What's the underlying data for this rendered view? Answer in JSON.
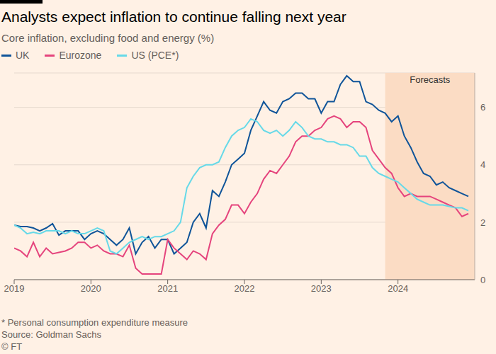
{
  "chart_data": {
    "type": "line",
    "title": "Analysts expect inflation to continue falling next year",
    "subtitle": "Core inflation, excluding food and energy (%)",
    "footnote": "* Personal consumption expenditure measure",
    "source": "Source: Goldman Sachs",
    "credit": "© FT",
    "x": [
      2019,
      2019.083,
      2019.167,
      2019.25,
      2019.333,
      2019.417,
      2019.5,
      2019.583,
      2019.667,
      2019.75,
      2019.833,
      2019.917,
      2020,
      2020.083,
      2020.167,
      2020.25,
      2020.333,
      2020.417,
      2020.5,
      2020.583,
      2020.667,
      2020.75,
      2020.833,
      2020.917,
      2021,
      2021.083,
      2021.167,
      2021.25,
      2021.333,
      2021.417,
      2021.5,
      2021.583,
      2021.667,
      2021.75,
      2021.833,
      2021.917,
      2022,
      2022.083,
      2022.167,
      2022.25,
      2022.333,
      2022.417,
      2022.5,
      2022.583,
      2022.667,
      2022.75,
      2022.833,
      2022.917,
      2023,
      2023.083,
      2023.167,
      2023.25,
      2023.333,
      2023.417,
      2023.5,
      2023.583,
      2023.667,
      2023.75,
      2023.833,
      2023.917,
      2024,
      2024.083,
      2024.167,
      2024.25,
      2024.333,
      2024.417,
      2024.5,
      2024.583,
      2024.667,
      2024.75,
      2024.833,
      2024.917
    ],
    "series": [
      {
        "name": "UK",
        "color": "#0f5499",
        "values": [
          1.9,
          1.85,
          1.85,
          1.8,
          1.7,
          1.8,
          1.95,
          1.55,
          1.7,
          1.7,
          1.7,
          1.4,
          1.6,
          1.7,
          1.6,
          1.4,
          1.2,
          1.4,
          1.8,
          0.9,
          1.3,
          1.5,
          1.1,
          1.4,
          1.4,
          0.9,
          1.1,
          1.3,
          2.0,
          2.3,
          1.8,
          3.1,
          2.9,
          3.4,
          4.0,
          4.2,
          4.4,
          5.2,
          5.7,
          6.2,
          5.9,
          5.8,
          6.2,
          6.3,
          6.5,
          6.5,
          6.3,
          6.3,
          5.8,
          6.2,
          6.2,
          6.8,
          7.1,
          6.9,
          6.9,
          6.2,
          6.1,
          5.9,
          5.8,
          5.5,
          5.7,
          5.0,
          4.6,
          4.1,
          3.7,
          3.6,
          3.3,
          3.4,
          3.2,
          3.1,
          3.0,
          2.9
        ]
      },
      {
        "name": "Eurozone",
        "color": "#e5447d",
        "values": [
          1.1,
          1.0,
          0.8,
          1.3,
          0.8,
          1.1,
          0.9,
          0.95,
          1.0,
          1.1,
          1.3,
          1.3,
          1.1,
          1.2,
          1.0,
          0.9,
          0.9,
          0.8,
          1.2,
          0.4,
          0.2,
          0.2,
          0.2,
          0.2,
          1.4,
          1.1,
          0.9,
          0.7,
          1.0,
          0.9,
          0.7,
          1.6,
          1.9,
          2.1,
          2.6,
          2.6,
          2.3,
          2.7,
          3.0,
          3.5,
          3.8,
          3.7,
          4.0,
          4.3,
          4.8,
          5.0,
          5.0,
          5.2,
          5.3,
          5.6,
          5.7,
          5.6,
          5.3,
          5.5,
          5.5,
          5.3,
          4.5,
          4.2,
          3.9,
          3.7,
          3.2,
          2.9,
          3.0,
          2.9,
          2.9,
          2.9,
          2.8,
          2.7,
          2.6,
          2.5,
          2.2,
          2.3
        ]
      },
      {
        "name": "US (PCE*)",
        "color": "#66d9e8",
        "values": [
          1.9,
          1.8,
          1.6,
          1.65,
          1.6,
          1.7,
          1.7,
          1.7,
          1.6,
          1.7,
          1.6,
          1.6,
          1.7,
          1.8,
          1.7,
          1.0,
          0.9,
          1.1,
          1.3,
          1.4,
          1.5,
          1.4,
          1.5,
          1.5,
          1.6,
          1.7,
          2.0,
          3.2,
          3.6,
          3.9,
          4.0,
          4.0,
          4.1,
          4.6,
          5.0,
          5.2,
          5.3,
          5.6,
          5.5,
          5.2,
          5.1,
          5.2,
          5.0,
          5.2,
          5.5,
          5.3,
          5.0,
          4.9,
          4.9,
          4.8,
          4.8,
          4.7,
          4.7,
          4.6,
          4.3,
          4.3,
          3.9,
          3.7,
          3.6,
          3.5,
          3.4,
          3.2,
          3.0,
          2.8,
          2.7,
          2.6,
          2.6,
          2.6,
          2.55,
          2.5,
          2.5,
          2.4
        ]
      }
    ],
    "xlim": [
      2019,
      2025
    ],
    "xticks": [
      2019,
      2020,
      2021,
      2022,
      2023,
      2024
    ],
    "ylim": [
      0,
      7.2
    ],
    "yticks": [
      0,
      2,
      4,
      6
    ],
    "grid": true,
    "annotations": [
      {
        "text": "Forecasts",
        "x_start": 2023.833,
        "x_end": 2025
      }
    ]
  }
}
